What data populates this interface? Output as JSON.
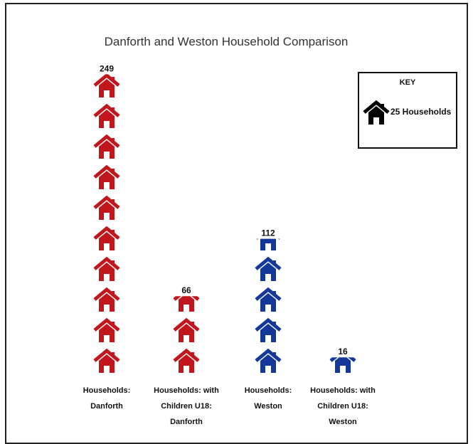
{
  "chart_data": {
    "type": "pictograph",
    "title": "Danforth and Weston Household Comparison",
    "unit_per_icon": 25,
    "categories": [
      [
        "Households:",
        "Danforth"
      ],
      [
        "Households: with",
        "Children U18:",
        "Danforth"
      ],
      [
        "Households:",
        "Weston"
      ],
      [
        "Households: with",
        "Children U18:",
        "Weston"
      ]
    ],
    "values": [
      249,
      66,
      112,
      16
    ],
    "colors": [
      "#c0161c",
      "#c0161c",
      "#14379a",
      "#14379a"
    ],
    "legend": {
      "title": "KEY",
      "text": "25 Households",
      "icon_color": "#000000",
      "position": "top-right"
    }
  }
}
